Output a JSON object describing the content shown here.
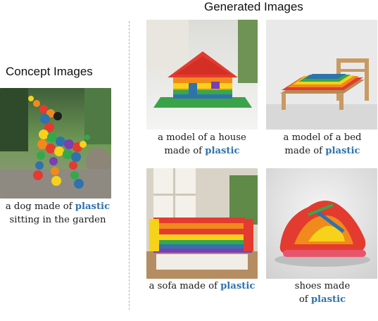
{
  "headings": {
    "concept": "Concept Images",
    "generated": "Generated Images"
  },
  "highlight_color": "#2f73ad",
  "concept": {
    "line1_pre": "a dog made of ",
    "line1_hl": "plastic",
    "line2": "sitting in the garden"
  },
  "generated": {
    "house": {
      "line1": "a model of a house",
      "line2_pre": "made of ",
      "line2_hl": "plastic"
    },
    "bed": {
      "line1": "a model of a bed",
      "line2_pre": "made of ",
      "line2_hl": "plastic"
    },
    "sofa": {
      "line1_pre": "a sofa made of ",
      "line1_hl": "plastic"
    },
    "shoe": {
      "line1": "shoes made",
      "line2_pre": "of ",
      "line2_hl": "plastic"
    }
  }
}
